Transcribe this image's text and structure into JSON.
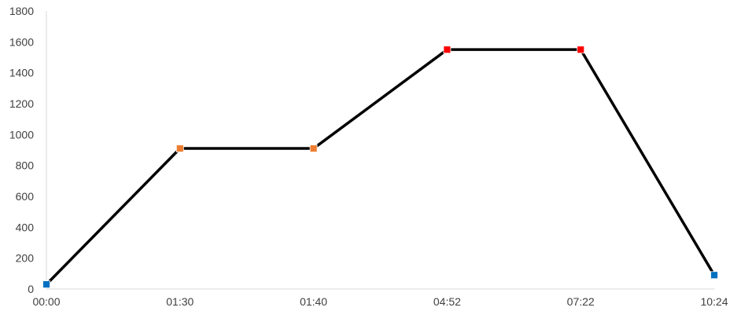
{
  "chart_data": {
    "type": "line",
    "title": "",
    "xlabel": "",
    "ylabel": "",
    "categories": [
      "00:00",
      "01:30",
      "01:40",
      "04:52",
      "07:22",
      "10:24"
    ],
    "values": [
      30,
      910,
      910,
      1550,
      1550,
      90
    ],
    "marker_colors": [
      "#0070C0",
      "#ED7D31",
      "#ED7D31",
      "#FF0000",
      "#FF0000",
      "#0070C0"
    ],
    "line_color": "#000000",
    "ylim": [
      0,
      1800
    ],
    "yticks": [
      0,
      200,
      400,
      600,
      800,
      1000,
      1200,
      1400,
      1600,
      1800
    ],
    "grid": false,
    "legend": "none"
  }
}
